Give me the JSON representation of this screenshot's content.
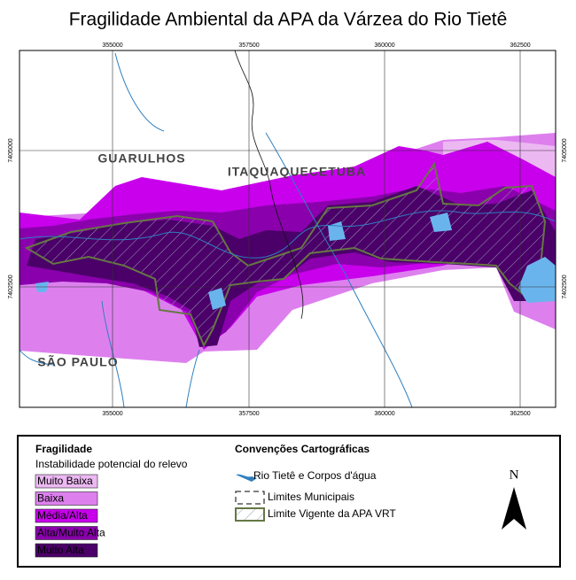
{
  "title": "Fragilidade Ambiental da APA da Várzea do Rio Tietê",
  "map": {
    "x_ticks": [
      "355000",
      "357500",
      "360000",
      "362500"
    ],
    "y_ticks": [
      "7405000",
      "7402500"
    ],
    "places": [
      "GUARULHOS",
      "ITAQUAQUECETUBA",
      "SÃO PAULO"
    ]
  },
  "legend": {
    "title": "Fragilidade",
    "subtitle": "Instabilidade potencial do relevo",
    "classes": [
      {
        "label": "Muito Baixa",
        "color": "#ecb8f2"
      },
      {
        "label": "Baixa",
        "color": "#dd80ee"
      },
      {
        "label": "Média/Alta",
        "color": "#c800ec"
      },
      {
        "label": "Alta/Muito Alta",
        "color": "#8a00ac"
      },
      {
        "label": "Muito Alta",
        "color": "#4a0068"
      }
    ],
    "conventions_title": "Convenções Cartográficas",
    "conventions": [
      "Rio Tietê e Corpos d'água",
      "Limites Municipais",
      "Limite Vigente da APA VRT"
    ],
    "north": "N"
  }
}
